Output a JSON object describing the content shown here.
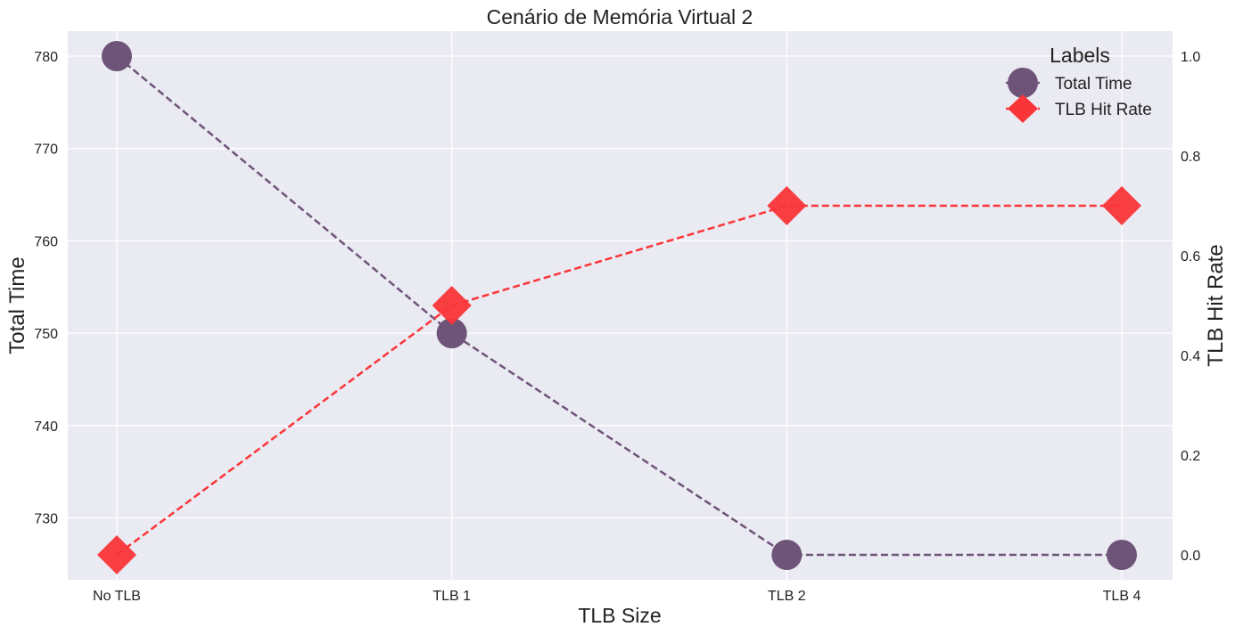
{
  "chart_data": {
    "type": "line",
    "title": "Cenário de Memória Virtual 2",
    "xlabel": "TLB Size",
    "ylabel_left": "Total Time",
    "ylabel_right": "TLB Hit Rate",
    "categories": [
      "No TLB",
      "TLB 1",
      "TLB 2",
      "TLB 4"
    ],
    "y_left_ticks": [
      730,
      740,
      750,
      760,
      770,
      780
    ],
    "y_left_lim": [
      723.3,
      782.7
    ],
    "y_right_ticks": [
      "0.0",
      "0.2",
      "0.4",
      "0.6",
      "0.8",
      "1.0"
    ],
    "y_right_lim": [
      -0.05,
      1.05
    ],
    "grid": true,
    "legend": {
      "title": "Labels",
      "placement": "top-right"
    },
    "series": [
      {
        "name": "Total Time",
        "axis": "left",
        "values": [
          780,
          750,
          726,
          726
        ],
        "color": "#6d5478",
        "marker": "circle",
        "line": "dashed"
      },
      {
        "name": "TLB Hit Rate",
        "axis": "right",
        "values": [
          0.0,
          0.5,
          0.7,
          0.7
        ],
        "color": "#fa3538",
        "marker": "diamond",
        "line": "dashed"
      }
    ],
    "colors": {
      "plot_bg": "#eaeaf2",
      "grid": "#ffffff",
      "text": "#222222"
    }
  }
}
